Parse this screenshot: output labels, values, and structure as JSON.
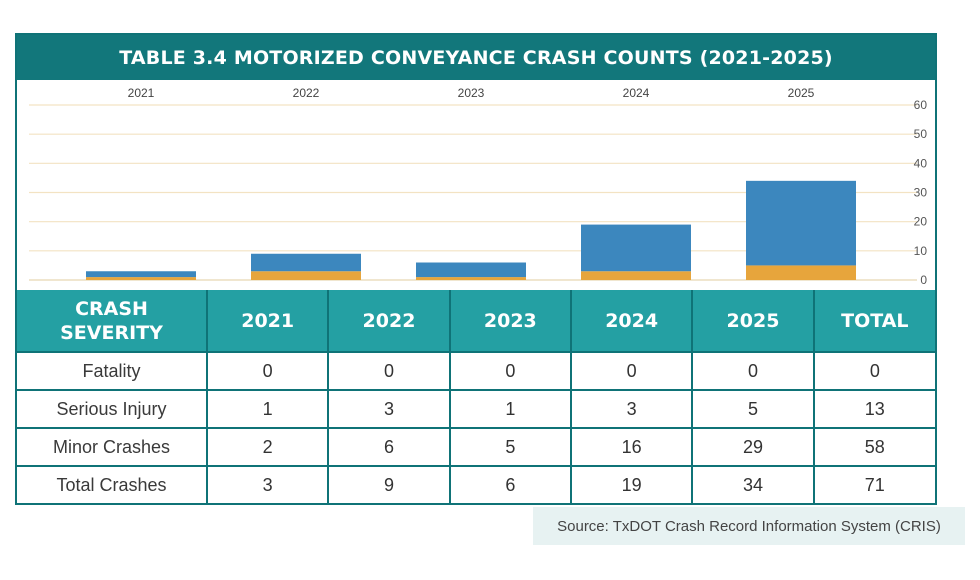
{
  "title": "TABLE 3.4 MOTORIZED CONVEYANCE CRASH COUNTS  (2021-2025)",
  "chart_data": {
    "type": "bar",
    "stacked": true,
    "categories": [
      "2021",
      "2022",
      "2023",
      "2024",
      "2025"
    ],
    "series": [
      {
        "values": [
          1,
          3,
          1,
          3,
          5
        ],
        "color": "#e7a53c"
      },
      {
        "values": [
          2,
          6,
          5,
          16,
          29
        ],
        "color": "#3c87be"
      }
    ],
    "y_ticks": [
      "0",
      "10",
      "20",
      "30",
      "40",
      "50",
      "60"
    ],
    "ylim": [
      0,
      60
    ],
    "y_axis_side": "right",
    "category_labels_position": "top",
    "grid": true
  },
  "table": {
    "header": [
      "CRASH SEVERITY",
      "2021",
      "2022",
      "2023",
      "2024",
      "2025",
      "TOTAL"
    ],
    "rows": [
      [
        "Fatality",
        "0",
        "0",
        "0",
        "0",
        "0",
        "0"
      ],
      [
        "Serious Injury",
        "1",
        "3",
        "1",
        "3",
        "5",
        "13"
      ],
      [
        "Minor Crashes",
        "2",
        "6",
        "5",
        "16",
        "29",
        "58"
      ],
      [
        "Total Crashes",
        "3",
        "9",
        "6",
        "19",
        "34",
        "71"
      ]
    ]
  },
  "source": "Source: TxDOT Crash Record Information System (CRIS)",
  "colors": {
    "title_bg": "#12777b",
    "header_bg": "#24a0a3",
    "border": "#0f7377",
    "grid": "#f3e3c3"
  }
}
